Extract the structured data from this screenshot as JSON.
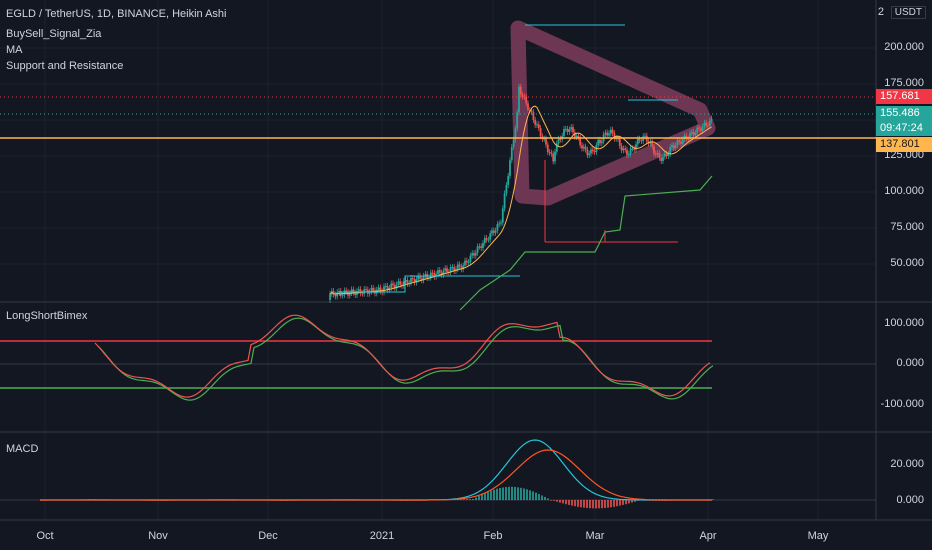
{
  "header": {
    "symbol": "EGLD / TetherUS, 1D, BINANCE, Heikin Ashi",
    "indicators": [
      "BuySell_Signal_Zia",
      "MA",
      "Support and Resistance"
    ],
    "top_right_num": "2",
    "currency_button": "USDT"
  },
  "price_axis": {
    "ticks": [
      "200.000",
      "175.000",
      "125.000",
      "100.000",
      "75.000",
      "50.000"
    ],
    "tag_high": "157.681",
    "tag_high_color": "#f23645",
    "tag_last": "155.486",
    "tag_countdown": "09:47:24",
    "tag_last_color": "#26a69a",
    "tag_support": "137.801",
    "tag_support_color": "#ffb74d"
  },
  "pane2": {
    "title": "LongShortBimex",
    "ticks": [
      "100.000",
      "0.000",
      "-100.000"
    ]
  },
  "pane3": {
    "title": "MACD",
    "ticks": [
      "20.000",
      "0.000"
    ]
  },
  "time_axis": {
    "labels": [
      "Oct",
      "Nov",
      "Dec",
      "2021",
      "Feb",
      "Mar",
      "Apr",
      "May"
    ]
  },
  "colors": {
    "up": "#26a69a",
    "down": "#ef5350",
    "ma": "#ffb74d",
    "support_line": "#ffb74d",
    "triangle": "#7e3c5c",
    "resistance": "#26c6da",
    "stop": "#4caf50",
    "macd_line": "#26c6da",
    "signal_line": "#ff5722"
  }
}
